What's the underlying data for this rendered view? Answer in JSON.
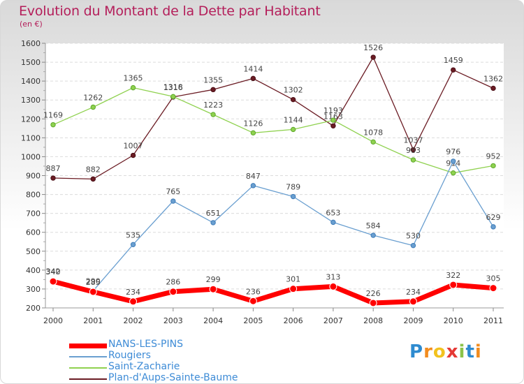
{
  "title": "Evolution du Montant de la Dette par Habitant",
  "unit": "(en €)",
  "logo": {
    "text": "Proxiti",
    "letter_colors": [
      "#2e8bd0",
      "#f28c1e",
      "#f2c21e",
      "#e53935",
      "#8bc34a",
      "#2e8bd0",
      "#f28c1e"
    ]
  },
  "chart_data": {
    "type": "line",
    "x": [
      "2000",
      "2001",
      "2002",
      "2003",
      "2004",
      "2005",
      "2006",
      "2007",
      "2008",
      "2009",
      "2010",
      "2011"
    ],
    "ylim": [
      200,
      1600
    ],
    "yticks": [
      200,
      300,
      400,
      500,
      600,
      700,
      800,
      900,
      1000,
      1100,
      1200,
      1300,
      1400,
      1500,
      1600
    ],
    "grid": "horizontal",
    "legend_position": "bottom-left",
    "series": [
      {
        "name": "NANS-LES-PINS",
        "color": "#ff0000",
        "values": [
          340,
          285,
          234,
          286,
          299,
          236,
          301,
          313,
          226,
          234,
          322,
          305
        ]
      },
      {
        "name": "Rougiers",
        "color": "#6a9fd0",
        "values": [
          342,
          290,
          535,
          765,
          651,
          847,
          789,
          653,
          584,
          530,
          976,
          629
        ]
      },
      {
        "name": "Saint-Zacharie",
        "color": "#8fd14f",
        "values": [
          1169,
          1262,
          1365,
          1318,
          1223,
          1126,
          1144,
          1193,
          1078,
          983,
          914,
          952
        ]
      },
      {
        "name": "Plan-d'Aups-Sainte-Baume",
        "color": "#6b1c24",
        "values": [
          887,
          882,
          1007,
          1316,
          1355,
          1414,
          1302,
          1163,
          1526,
          1037,
          1459,
          1362
        ]
      }
    ]
  }
}
